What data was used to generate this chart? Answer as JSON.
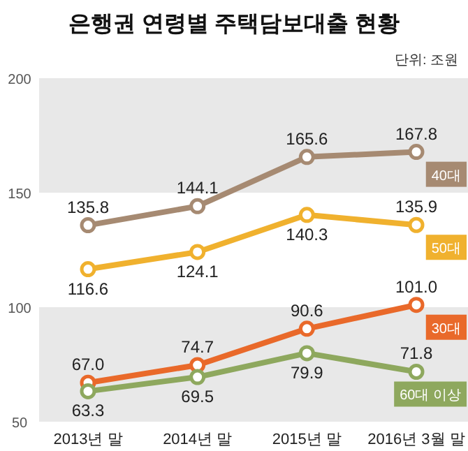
{
  "chart_data": {
    "type": "line",
    "title": "은행권 연령별 주택담보대출 현황",
    "annotations": [
      "단위: 조원"
    ],
    "categories": [
      "2013년 말",
      "2014년 말",
      "2015년 말",
      "2016년 3월 말"
    ],
    "ylim": [
      50,
      200
    ],
    "yticks": [
      50,
      100,
      150,
      200
    ],
    "bands": [
      {
        "axis": "y",
        "from": 150,
        "to": 200,
        "color": "#e8e8e8"
      },
      {
        "axis": "y",
        "from": 50,
        "to": 100,
        "color": "#e8e8e8"
      }
    ],
    "marker": "circle",
    "line_style": "solid",
    "series": [
      {
        "name": "40대",
        "color": "#a68a72",
        "values": [
          135.8,
          144.1,
          165.6,
          167.8
        ],
        "value_labels": [
          "135.8",
          "144.1",
          "165.6",
          "167.8"
        ]
      },
      {
        "name": "50대",
        "color": "#f0b12e",
        "values": [
          116.6,
          124.1,
          140.3,
          135.9
        ],
        "value_labels": [
          "116.6",
          "124.1",
          "140.3",
          "135.9"
        ]
      },
      {
        "name": "30대",
        "color": "#e9692a",
        "values": [
          67.0,
          74.7,
          90.6,
          101.0
        ],
        "value_labels": [
          "67.0",
          "74.7",
          "90.6",
          "101.0"
        ]
      },
      {
        "name": "60대 이상",
        "color": "#8ea85e",
        "values": [
          63.3,
          69.5,
          79.9,
          71.8
        ],
        "value_labels": [
          "63.3",
          "69.5",
          "79.9",
          "71.8"
        ]
      }
    ]
  }
}
